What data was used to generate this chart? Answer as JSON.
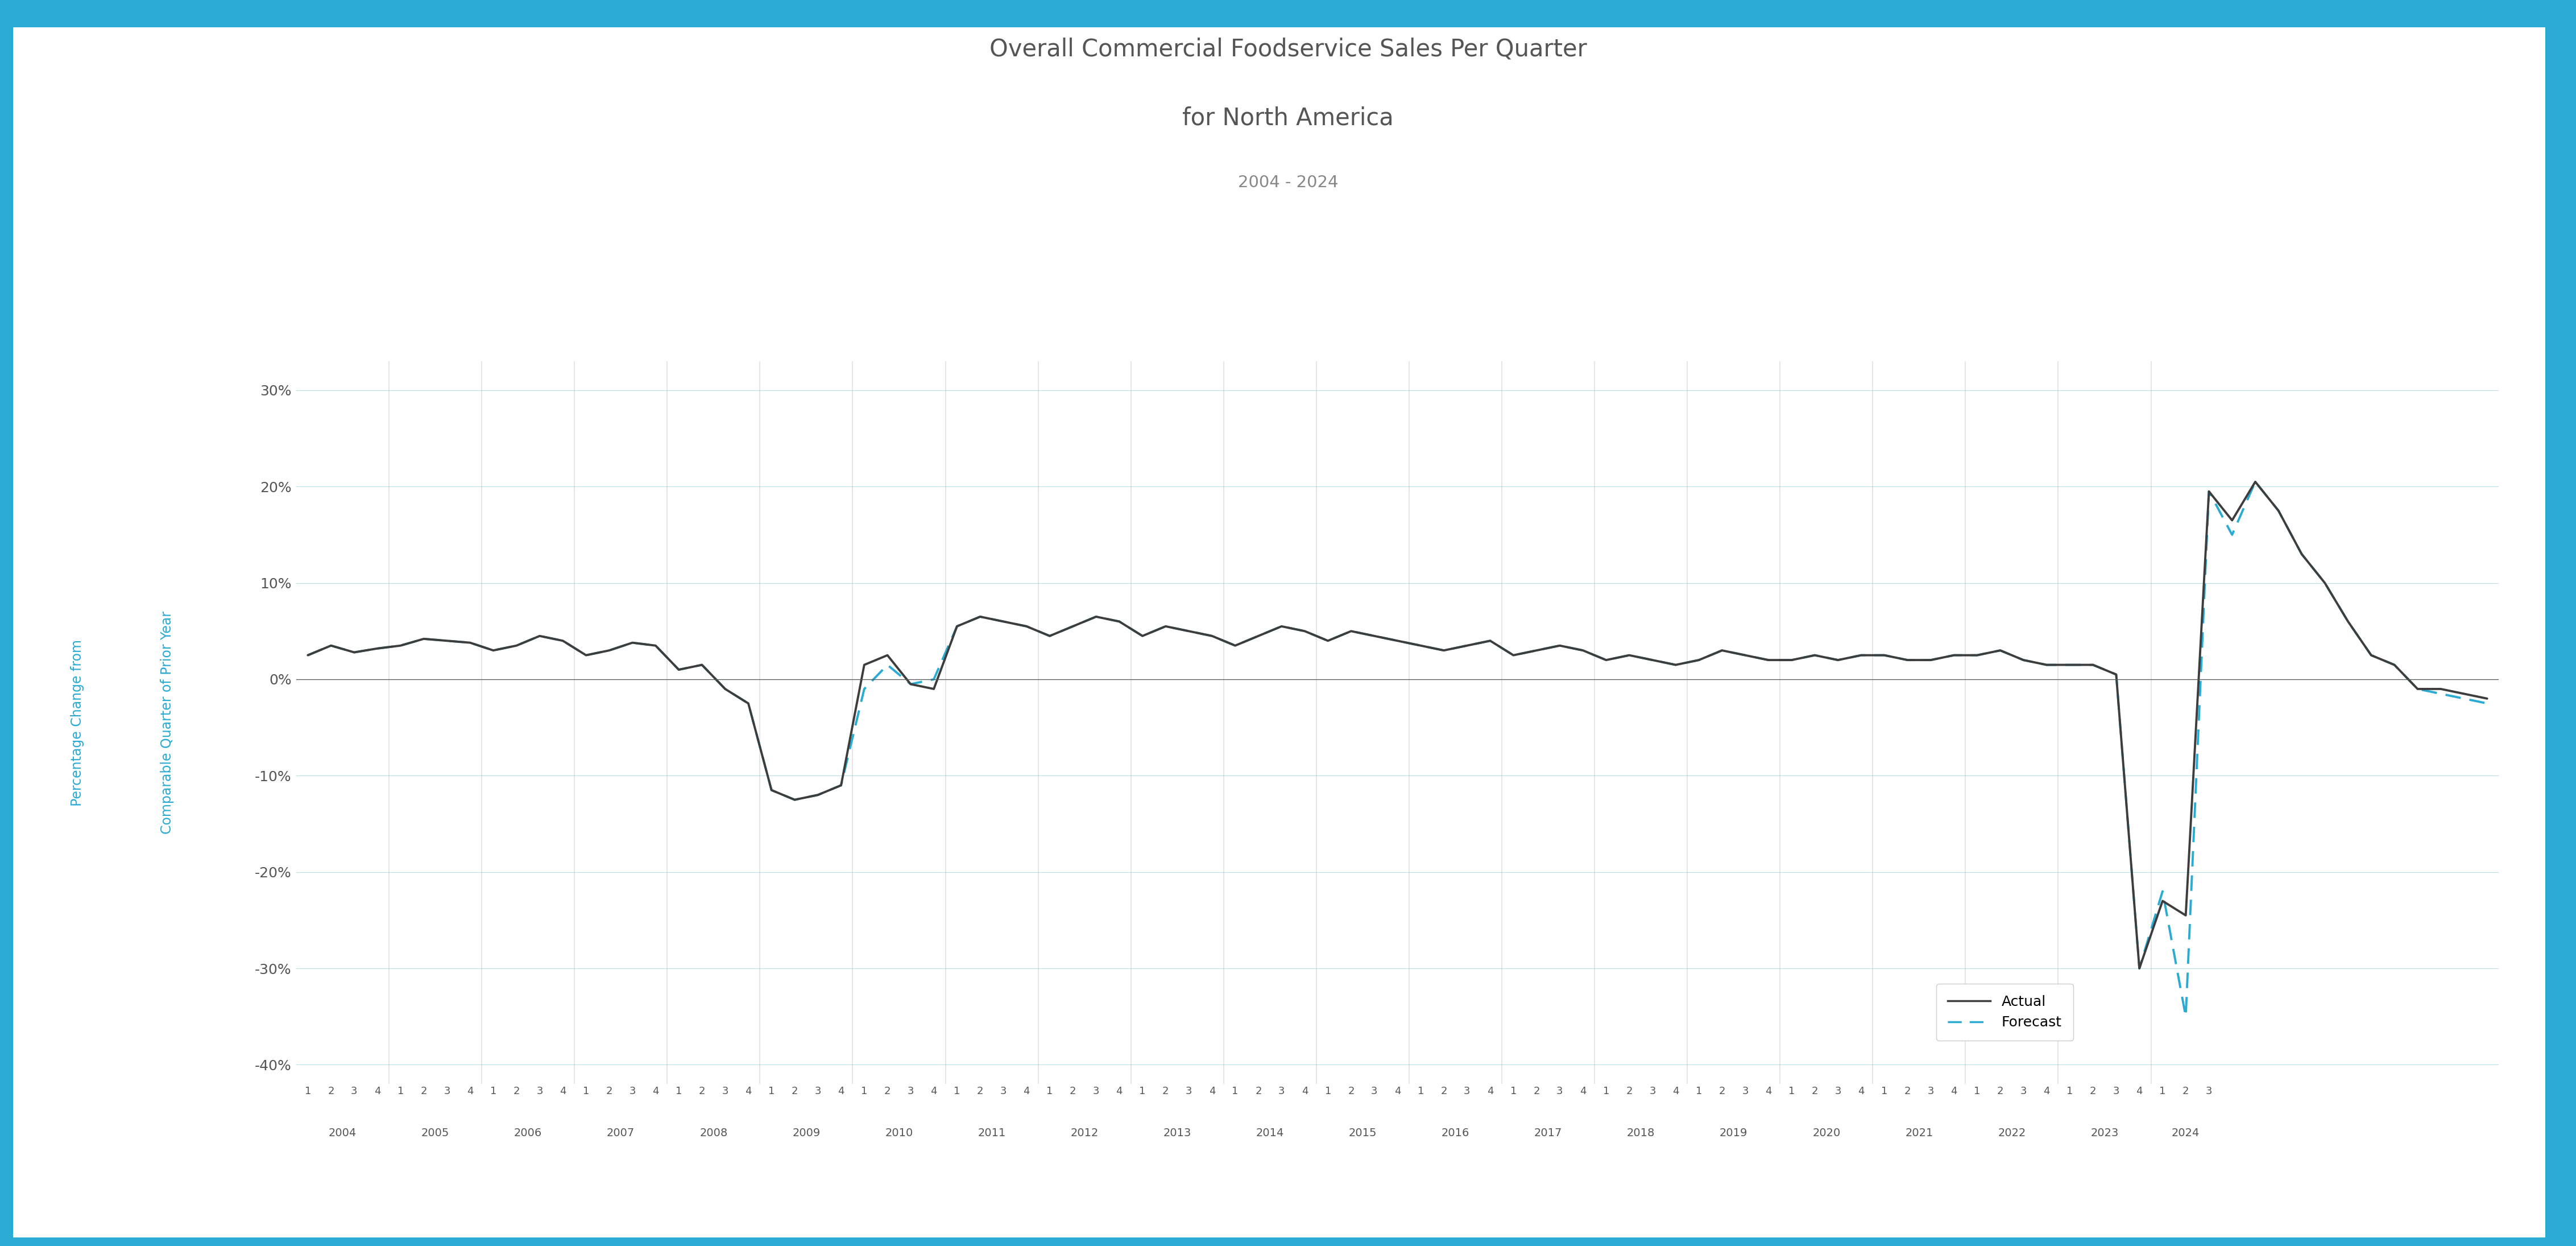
{
  "title_line1": "Overall Commercial Foodservice Sales Per Quarter",
  "title_line2": "for North America",
  "title_line3": "2004 - 2024",
  "ylabel_line1": "Percentage Change from",
  "ylabel_line2": "Comparable Quarter of Prior Year",
  "ylabel_color": "#29ABD4",
  "actual_color": "#3D3D3D",
  "forecast_color": "#29ABD4",
  "background_color": "#FFFFFF",
  "border_color": "#29ABD4",
  "grid_color": "#B8E0EA",
  "zero_line_color": "#555555",
  "ylim": [
    -42,
    33
  ],
  "yticks": [
    -40,
    -30,
    -20,
    -10,
    0,
    10,
    20,
    30
  ],
  "actual_data": [
    2.5,
    3.5,
    2.8,
    3.2,
    3.5,
    4.2,
    4.0,
    3.8,
    3.0,
    3.5,
    4.5,
    4.0,
    2.5,
    3.0,
    3.8,
    3.5,
    1.0,
    1.5,
    -1.0,
    -2.5,
    -11.5,
    -12.5,
    -12.0,
    -11.0,
    1.5,
    2.5,
    -0.5,
    -1.0,
    5.5,
    6.5,
    6.0,
    5.5,
    4.5,
    5.5,
    6.5,
    6.0,
    4.5,
    5.5,
    5.0,
    4.5,
    3.5,
    4.5,
    5.5,
    5.0,
    4.0,
    5.0,
    4.5,
    4.0,
    3.5,
    3.0,
    3.5,
    4.0,
    2.5,
    3.0,
    3.5,
    3.0,
    2.0,
    2.5,
    2.0,
    1.5,
    2.0,
    3.0,
    2.5,
    2.0,
    2.0,
    2.5,
    2.0,
    2.5,
    2.5,
    2.0,
    2.0,
    2.5,
    2.5,
    3.0,
    2.0,
    1.5,
    1.5,
    1.5,
    0.5,
    -30.0,
    -23.0,
    -24.5,
    19.5,
    16.5,
    20.5,
    17.5,
    13.0,
    10.0,
    6.0,
    2.5,
    1.5,
    -1.0,
    -1.0,
    -1.5,
    -2.0
  ],
  "forecast_data": [
    2.5,
    3.5,
    2.8,
    3.2,
    3.5,
    4.2,
    4.0,
    3.8,
    3.0,
    3.5,
    4.5,
    4.0,
    2.5,
    3.0,
    3.8,
    3.5,
    1.0,
    1.5,
    -1.0,
    -2.5,
    -11.5,
    -12.5,
    -12.0,
    -11.0,
    -1.0,
    1.5,
    -0.5,
    0.0,
    5.5,
    6.5,
    6.0,
    5.5,
    4.5,
    5.5,
    6.5,
    6.0,
    4.5,
    5.5,
    5.0,
    4.5,
    3.5,
    4.5,
    5.5,
    5.0,
    4.0,
    5.0,
    4.5,
    4.0,
    3.5,
    3.0,
    3.5,
    4.0,
    2.5,
    3.0,
    3.5,
    3.0,
    2.0,
    2.5,
    2.0,
    1.5,
    2.0,
    3.0,
    2.5,
    2.0,
    2.0,
    2.5,
    2.0,
    2.5,
    2.5,
    2.0,
    2.0,
    2.5,
    2.5,
    3.0,
    2.0,
    1.5,
    1.5,
    1.5,
    0.5,
    -30.0,
    -22.0,
    -35.0,
    19.5,
    15.0,
    20.5,
    17.5,
    13.0,
    10.0,
    6.0,
    2.5,
    1.5,
    -1.0,
    -1.5,
    -2.0,
    -2.5
  ],
  "quarters_per_year": [
    4,
    4,
    4,
    4,
    4,
    4,
    4,
    4,
    4,
    4,
    4,
    4,
    4,
    4,
    4,
    4,
    4,
    4,
    4,
    4,
    3
  ],
  "years": [
    2004,
    2005,
    2006,
    2007,
    2008,
    2009,
    2010,
    2011,
    2012,
    2013,
    2014,
    2015,
    2016,
    2017,
    2018,
    2019,
    2020,
    2021,
    2022,
    2023,
    2024
  ],
  "title_color": "#555555",
  "subtitle_color": "#888888",
  "tick_color": "#555555",
  "divider_color": "#999999",
  "legend_edge_color": "#CCCCCC"
}
